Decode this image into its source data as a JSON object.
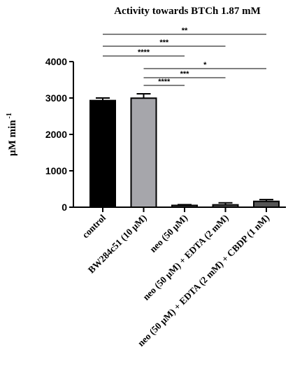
{
  "chart_data": {
    "type": "bar",
    "title": "Activity towards BTCh 1.87 mM",
    "ylabel_main": "μM min",
    "ylabel_sup": "-1",
    "xlabel": "",
    "ylim": [
      0,
      4000
    ],
    "yticks": [
      "0",
      "1000",
      "2000",
      "3000",
      "4000"
    ],
    "ytick_values": [
      0,
      1000,
      2000,
      3000,
      4000
    ],
    "categories": [
      "control",
      "BW284c51 (10 μM)",
      "neo (50 μM)",
      "neo (50 μM) + EDTA (2 mM)",
      "neo (50 μM) + EDTA (2 mM) + CBDP (1 nM)"
    ],
    "values": [
      2930,
      2995,
      50,
      65,
      160
    ],
    "errors": [
      70,
      120,
      20,
      55,
      50
    ],
    "bar_colors": [
      "#000000",
      "#a6a6ab",
      "#555555",
      "#555555",
      "#555555"
    ],
    "significance": [
      {
        "from": 0,
        "to": 4,
        "label": "**"
      },
      {
        "from": 0,
        "to": 3,
        "label": "***"
      },
      {
        "from": 0,
        "to": 2,
        "label": "****"
      },
      {
        "from": 1,
        "to": 4,
        "label": "*"
      },
      {
        "from": 1,
        "to": 3,
        "label": "***"
      },
      {
        "from": 1,
        "to": 2,
        "label": "****"
      }
    ],
    "grid": false,
    "legend": "none"
  }
}
